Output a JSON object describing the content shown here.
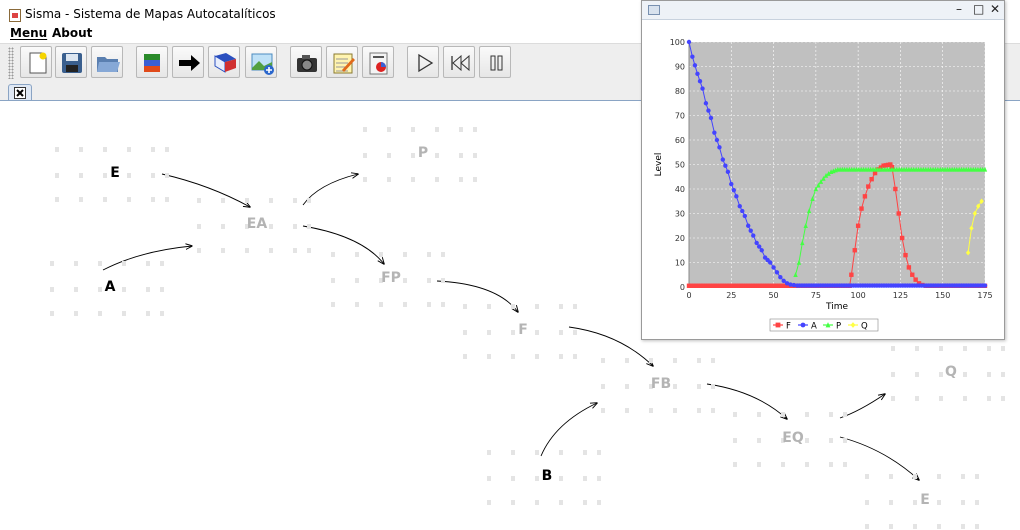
{
  "window": {
    "title": "Sisma - Sistema de Mapas Autocatalíticos"
  },
  "menu": [
    {
      "label": "Menu",
      "mnemonic": "M"
    },
    {
      "label": "About"
    }
  ],
  "toolbar": {
    "buttons": [
      {
        "name": "new-icon"
      },
      {
        "name": "save-icon"
      },
      {
        "name": "open-folder-icon"
      },
      {
        "name": "layers-icon"
      },
      {
        "name": "arrow-right-icon"
      },
      {
        "name": "book-icon"
      },
      {
        "name": "add-image-icon"
      },
      {
        "name": "camera-icon"
      },
      {
        "name": "notepad-icon"
      },
      {
        "name": "chart-report-icon"
      },
      {
        "name": "play-icon"
      },
      {
        "name": "rewind-icon"
      },
      {
        "name": "pause-icon"
      }
    ]
  },
  "tab": {
    "icon": "close-icon"
  },
  "map": {
    "nodes": [
      {
        "id": "E1",
        "label": "E",
        "style": "dark"
      },
      {
        "id": "A",
        "label": "A",
        "style": "dark"
      },
      {
        "id": "EA",
        "label": "EA",
        "style": "dim"
      },
      {
        "id": "P",
        "label": "P",
        "style": "dim"
      },
      {
        "id": "FP",
        "label": "FP",
        "style": "dim"
      },
      {
        "id": "F",
        "label": "F",
        "style": "dim"
      },
      {
        "id": "FB",
        "label": "FB",
        "style": "dim"
      },
      {
        "id": "B",
        "label": "B",
        "style": "dark"
      },
      {
        "id": "EQ",
        "label": "EQ",
        "style": "dim"
      },
      {
        "id": "Q",
        "label": "Q",
        "style": "dim"
      },
      {
        "id": "E2",
        "label": "E",
        "style": "dim"
      }
    ],
    "edges": [
      [
        "E1",
        "EA"
      ],
      [
        "A",
        "EA"
      ],
      [
        "EA",
        "P"
      ],
      [
        "EA",
        "FP"
      ],
      [
        "FP",
        "F"
      ],
      [
        "F",
        "FB"
      ],
      [
        "B",
        "FB"
      ],
      [
        "FB",
        "EQ"
      ],
      [
        "EQ",
        "Q"
      ],
      [
        "EQ",
        "E2"
      ]
    ]
  },
  "chart_window": {
    "buttons": {
      "minimize": "–",
      "maximize": "□",
      "close": "✕"
    }
  },
  "chart_data": {
    "type": "line",
    "xlabel": "Time",
    "ylabel": "Level",
    "xlim": [
      0,
      175
    ],
    "ylim": [
      0,
      100
    ],
    "xticks": [
      0,
      25,
      50,
      75,
      100,
      125,
      150,
      175
    ],
    "yticks": [
      0,
      10,
      20,
      30,
      40,
      50,
      60,
      70,
      80,
      90,
      100
    ],
    "grid": true,
    "legend_position": "bottom",
    "series": [
      {
        "name": "F",
        "color": "#ff4444",
        "marker": "square",
        "points": [
          [
            0,
            0.5
          ],
          [
            95,
            0.5
          ],
          [
            96,
            5
          ],
          [
            98,
            15
          ],
          [
            100,
            25
          ],
          [
            102,
            32
          ],
          [
            104,
            37
          ],
          [
            106,
            41
          ],
          [
            108,
            44
          ],
          [
            110,
            46.5
          ],
          [
            112,
            48
          ],
          [
            115,
            49.5
          ],
          [
            119,
            50
          ],
          [
            120,
            49
          ],
          [
            122,
            40
          ],
          [
            124,
            30
          ],
          [
            126,
            20
          ],
          [
            128,
            13
          ],
          [
            130,
            8
          ],
          [
            132,
            5
          ],
          [
            134,
            3
          ],
          [
            136,
            1.5
          ],
          [
            138,
            0.8
          ],
          [
            140,
            0.5
          ],
          [
            175,
            0.5
          ]
        ]
      },
      {
        "name": "A",
        "color": "#4444ff",
        "marker": "circle",
        "points": [
          [
            0,
            100
          ],
          [
            2,
            94
          ],
          [
            5,
            87
          ],
          [
            8,
            81
          ],
          [
            10,
            75
          ],
          [
            13,
            69
          ],
          [
            15,
            63
          ],
          [
            18,
            57
          ],
          [
            20,
            52
          ],
          [
            23,
            47
          ],
          [
            25,
            42
          ],
          [
            28,
            37
          ],
          [
            30,
            33
          ],
          [
            33,
            29
          ],
          [
            35,
            25
          ],
          [
            38,
            21
          ],
          [
            40,
            18
          ],
          [
            43,
            15
          ],
          [
            45,
            12
          ],
          [
            48,
            10
          ],
          [
            50,
            8
          ],
          [
            52,
            6
          ],
          [
            54,
            4
          ],
          [
            56,
            2.5
          ],
          [
            58,
            1.5
          ],
          [
            60,
            1
          ],
          [
            62,
            0.8
          ],
          [
            64,
            0.6
          ],
          [
            100,
            0.6
          ],
          [
            175,
            0.6
          ]
        ]
      },
      {
        "name": "P",
        "color": "#44ff44",
        "marker": "triangle",
        "points": [
          [
            63,
            5
          ],
          [
            65,
            10
          ],
          [
            67,
            18
          ],
          [
            69,
            25
          ],
          [
            71,
            31
          ],
          [
            73,
            36
          ],
          [
            75,
            40
          ],
          [
            78,
            43
          ],
          [
            81,
            45.5
          ],
          [
            84,
            47
          ],
          [
            88,
            48
          ],
          [
            92,
            48
          ],
          [
            120,
            48
          ],
          [
            150,
            48
          ],
          [
            175,
            48
          ]
        ]
      },
      {
        "name": "Q",
        "color": "#ffff44",
        "marker": "diamond",
        "points": [
          [
            165,
            14
          ],
          [
            167,
            24
          ],
          [
            169,
            30
          ],
          [
            171,
            33
          ],
          [
            173,
            35
          ]
        ]
      }
    ]
  }
}
